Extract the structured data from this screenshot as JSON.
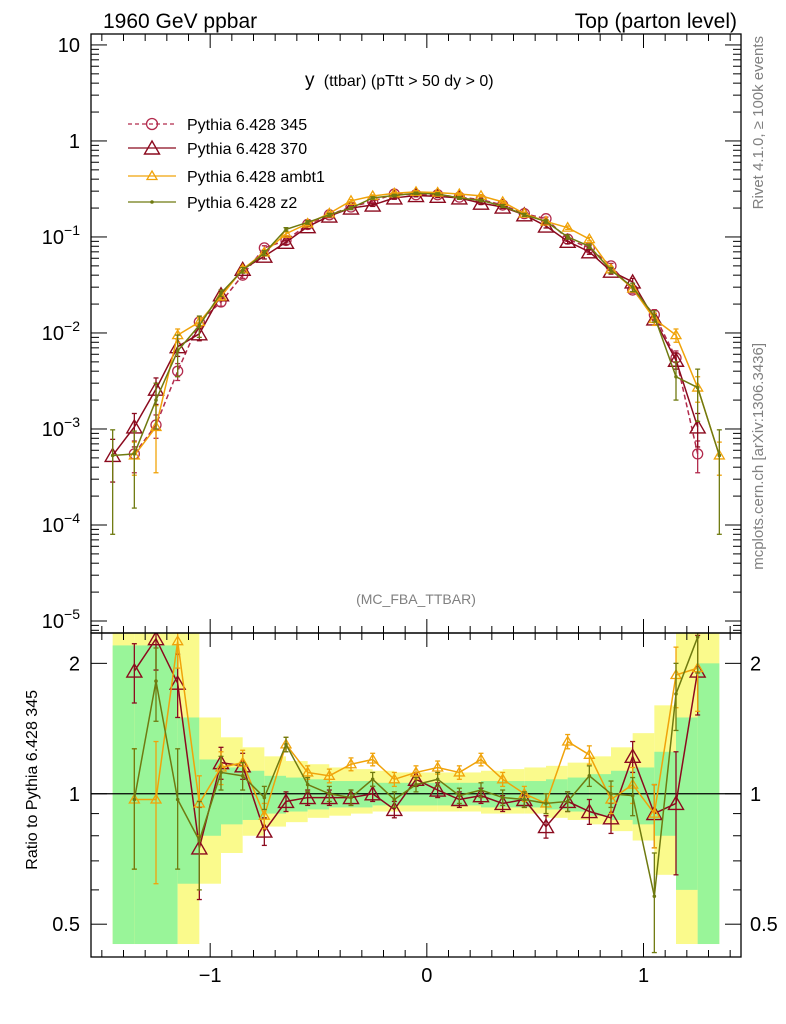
{
  "header": {
    "left_label": "1960 GeV ppbar",
    "right_label": "Top (parton level)"
  },
  "side_labels": {
    "rivet": "Rivet 4.1.0, ≥ 100k events",
    "mcplots": "mcplots.cern.ch [arXiv:1306.3436]"
  },
  "colors": {
    "p345": "#b22a4c",
    "p370": "#8b0a1e",
    "ambt1": "#f0a30a",
    "z2": "#6f7a10",
    "band_inner": "#99f599",
    "band_outer": "#fafa8c"
  },
  "chart_data": [
    {
      "type": "line",
      "panel": "main",
      "title_main": "y",
      "title_rest": "(ttbar) (pTtt > 50 dy > 0)",
      "analysis_label": "(MC_FBA_TTBAR)",
      "xlabel": "",
      "ylabel": "",
      "yscale": "log",
      "xlim": [
        -1.55,
        1.45
      ],
      "ylim": [
        7.5e-06,
        13
      ],
      "y_ticks": [
        {
          "v": 10,
          "label": "10",
          "exp": ""
        },
        {
          "v": 1,
          "label": "1",
          "exp": ""
        },
        {
          "v": 0.1,
          "label": "10",
          "exp": "−1"
        },
        {
          "v": 0.01,
          "label": "10",
          "exp": "−2"
        },
        {
          "v": 0.001,
          "label": "10",
          "exp": "−3"
        },
        {
          "v": 0.0001,
          "label": "10",
          "exp": "−4"
        },
        {
          "v": 1e-05,
          "label": "10",
          "exp": "−5"
        }
      ],
      "x_ticks": [
        {
          "v": -1,
          "label": "−1"
        },
        {
          "v": 0,
          "label": "0"
        },
        {
          "v": 1,
          "label": "1"
        }
      ],
      "legend_position": "top-left",
      "series": [
        {
          "name": "Pythia 6.428 345",
          "key": "p345",
          "marker": "circle",
          "dashed": true,
          "x": [
            -1.35,
            -1.25,
            -1.15,
            -1.05,
            -0.95,
            -0.85,
            -0.75,
            -0.65,
            -0.55,
            -0.45,
            -0.35,
            -0.25,
            -0.15,
            -0.05,
            0.05,
            0.15,
            0.25,
            0.35,
            0.45,
            0.55,
            0.65,
            0.75,
            0.85,
            0.95,
            1.05,
            1.15,
            1.25
          ],
          "y": [
            0.00055,
            0.0011,
            0.004,
            0.013,
            0.021,
            0.04,
            0.077,
            0.092,
            0.135,
            0.17,
            0.205,
            0.235,
            0.28,
            0.275,
            0.275,
            0.26,
            0.245,
            0.215,
            0.175,
            0.155,
            0.095,
            0.077,
            0.05,
            0.028,
            0.0155,
            0.0055,
            0.00055
          ],
          "err": [
            0.0002,
            0.0003,
            0.0008,
            0.0015,
            0.002,
            0.003,
            0.004,
            0.005,
            0.006,
            0.006,
            0.007,
            0.007,
            0.008,
            0.008,
            0.008,
            0.008,
            0.007,
            0.007,
            0.006,
            0.006,
            0.005,
            0.004,
            0.003,
            0.002,
            0.002,
            0.001,
            0.0002
          ]
        },
        {
          "name": "Pythia 6.428 370",
          "key": "p370",
          "marker": "triangle-open",
          "dashed": false,
          "x": [
            -1.45,
            -1.35,
            -1.25,
            -1.15,
            -1.05,
            -0.95,
            -0.85,
            -0.75,
            -0.65,
            -0.55,
            -0.45,
            -0.35,
            -0.25,
            -0.15,
            -0.05,
            0.05,
            0.15,
            0.25,
            0.35,
            0.45,
            0.55,
            0.65,
            0.75,
            0.85,
            0.95,
            1.05,
            1.15,
            1.25
          ],
          "y": [
            0.00053,
            0.00105,
            0.0026,
            0.0072,
            0.0098,
            0.025,
            0.046,
            0.063,
            0.088,
            0.128,
            0.165,
            0.2,
            0.215,
            0.255,
            0.27,
            0.265,
            0.255,
            0.225,
            0.205,
            0.17,
            0.13,
            0.09,
            0.07,
            0.044,
            0.034,
            0.014,
            0.0052,
            0.00105
          ],
          "err": [
            0.00025,
            0.0004,
            0.0008,
            0.0015,
            0.0015,
            0.002,
            0.003,
            0.004,
            0.005,
            0.006,
            0.006,
            0.007,
            0.007,
            0.008,
            0.008,
            0.008,
            0.008,
            0.007,
            0.007,
            0.006,
            0.006,
            0.005,
            0.004,
            0.003,
            0.003,
            0.002,
            0.001,
            0.0004
          ]
        },
        {
          "name": "Pythia 6.428 ambt1",
          "key": "ambt1",
          "marker": "triangle-small",
          "dashed": false,
          "x": [
            -1.35,
            -1.25,
            -1.15,
            -1.05,
            -0.95,
            -0.85,
            -0.75,
            -0.65,
            -0.55,
            -0.45,
            -0.35,
            -0.25,
            -0.15,
            -0.05,
            0.05,
            0.15,
            0.25,
            0.35,
            0.45,
            0.55,
            0.65,
            0.75,
            0.85,
            0.95,
            1.05,
            1.15,
            1.25,
            1.35
          ],
          "y": [
            0.00053,
            0.00105,
            0.0095,
            0.013,
            0.024,
            0.046,
            0.069,
            0.108,
            0.138,
            0.176,
            0.238,
            0.267,
            0.285,
            0.295,
            0.29,
            0.28,
            0.268,
            0.232,
            0.175,
            0.145,
            0.125,
            0.095,
            0.046,
            0.029,
            0.014,
            0.0095,
            0.0027,
            0.00053
          ],
          "err": [
            0.0002,
            0.0007,
            0.0015,
            0.0015,
            0.002,
            0.003,
            0.004,
            0.005,
            0.006,
            0.006,
            0.007,
            0.007,
            0.008,
            0.008,
            0.008,
            0.008,
            0.007,
            0.007,
            0.006,
            0.006,
            0.005,
            0.004,
            0.003,
            0.002,
            0.002,
            0.0015,
            0.0008,
            0.0002
          ]
        },
        {
          "name": "Pythia 6.428 z2",
          "key": "z2",
          "marker": "dot",
          "dashed": false,
          "x": [
            -1.45,
            -1.35,
            -1.25,
            -1.15,
            -1.05,
            -0.95,
            -0.85,
            -0.75,
            -0.65,
            -0.55,
            -0.45,
            -0.35,
            -0.25,
            -0.15,
            -0.05,
            0.05,
            0.15,
            0.25,
            0.35,
            0.45,
            0.55,
            0.65,
            0.75,
            0.85,
            0.95,
            1.05,
            1.15,
            1.25,
            1.35
          ],
          "y": [
            0.00053,
            0.00055,
            0.002,
            0.0065,
            0.012,
            0.026,
            0.045,
            0.068,
            0.12,
            0.142,
            0.17,
            0.2,
            0.255,
            0.27,
            0.285,
            0.28,
            0.255,
            0.24,
            0.21,
            0.17,
            0.145,
            0.1,
            0.08,
            0.045,
            0.03,
            0.015,
            0.0035,
            0.0027,
            0.00053
          ],
          "err": [
            0.00045,
            0.0004,
            0.001,
            0.003,
            0.003,
            0.002,
            0.003,
            0.004,
            0.005,
            0.006,
            0.006,
            0.007,
            0.007,
            0.008,
            0.008,
            0.008,
            0.008,
            0.007,
            0.007,
            0.006,
            0.006,
            0.005,
            0.004,
            0.003,
            0.003,
            0.002,
            0.0015,
            0.0015,
            0.00045
          ]
        }
      ]
    },
    {
      "type": "line",
      "panel": "ratio",
      "xlabel": "",
      "ylabel": "Ratio to Pythia 6.428 345",
      "yscale": "log",
      "xlim": [
        -1.55,
        1.45
      ],
      "ylim": [
        0.42,
        2.35
      ],
      "y_ticks": [
        {
          "v": 0.5,
          "label": "0.5"
        },
        {
          "v": 1,
          "label": "1"
        },
        {
          "v": 2,
          "label": "2"
        }
      ],
      "x_ticks": [
        {
          "v": -1,
          "label": "−1"
        },
        {
          "v": 0,
          "label": "0"
        },
        {
          "v": 1,
          "label": "1"
        }
      ],
      "band": {
        "x": [
          -1.4,
          -1.3,
          -1.2,
          -1.1,
          -1.0,
          -0.9,
          -0.8,
          -0.7,
          -0.6,
          -0.5,
          -0.4,
          -0.3,
          -0.2,
          -0.1,
          0.0,
          0.1,
          0.2,
          0.3,
          0.4,
          0.5,
          0.6,
          0.7,
          0.8,
          0.9,
          1.0,
          1.1,
          1.2,
          1.3
        ],
        "inner": [
          0.45,
          0.45,
          0.45,
          0.62,
          0.8,
          0.85,
          0.87,
          0.9,
          0.91,
          0.92,
          0.93,
          0.93,
          0.94,
          0.94,
          0.94,
          0.94,
          0.94,
          0.93,
          0.93,
          0.93,
          0.92,
          0.91,
          0.89,
          0.87,
          0.85,
          0.8,
          0.6,
          0.45
        ],
        "inner_hi": [
          2.2,
          2.2,
          2.2,
          1.5,
          1.2,
          1.15,
          1.13,
          1.1,
          1.09,
          1.08,
          1.07,
          1.07,
          1.06,
          1.06,
          1.06,
          1.06,
          1.06,
          1.07,
          1.07,
          1.07,
          1.08,
          1.09,
          1.11,
          1.13,
          1.15,
          1.25,
          1.5,
          2.0
        ],
        "outer_lo": [
          0.45,
          0.45,
          0.45,
          0.45,
          0.62,
          0.73,
          0.8,
          0.84,
          0.86,
          0.88,
          0.89,
          0.9,
          0.91,
          0.91,
          0.91,
          0.91,
          0.91,
          0.9,
          0.9,
          0.9,
          0.88,
          0.87,
          0.85,
          0.82,
          0.78,
          0.65,
          0.45,
          0.45
        ],
        "outer_hi": [
          2.35,
          2.35,
          2.35,
          2.35,
          1.5,
          1.35,
          1.28,
          1.22,
          1.19,
          1.17,
          1.15,
          1.14,
          1.13,
          1.12,
          1.12,
          1.12,
          1.12,
          1.13,
          1.14,
          1.15,
          1.16,
          1.18,
          1.22,
          1.28,
          1.38,
          1.6,
          2.35,
          2.35
        ]
      },
      "series": [
        {
          "name": "Pythia 6.428 370",
          "key": "p370",
          "marker": "triangle-open",
          "x": [
            -1.35,
            -1.25,
            -1.15,
            -1.05,
            -0.95,
            -0.85,
            -0.75,
            -0.65,
            -0.55,
            -0.45,
            -0.35,
            -0.25,
            -0.15,
            -0.05,
            0.05,
            0.15,
            0.25,
            0.35,
            0.45,
            0.55,
            0.65,
            0.75,
            0.85,
            0.95,
            1.05,
            1.15,
            1.25
          ],
          "y": [
            1.92,
            2.28,
            1.8,
            0.75,
            1.18,
            1.16,
            0.82,
            0.96,
            0.98,
            0.98,
            0.98,
            1.0,
            0.92,
            1.08,
            1.02,
            0.97,
            0.99,
            0.95,
            0.97,
            0.84,
            0.96,
            0.91,
            0.88,
            1.22,
            0.9,
            0.95,
            1.92
          ],
          "err": [
            0.3,
            0.35,
            0.3,
            0.18,
            0.1,
            0.08,
            0.06,
            0.05,
            0.04,
            0.04,
            0.04,
            0.04,
            0.04,
            0.04,
            0.04,
            0.04,
            0.04,
            0.04,
            0.04,
            0.05,
            0.05,
            0.06,
            0.07,
            0.1,
            0.15,
            0.3,
            0.4
          ]
        },
        {
          "name": "Pythia 6.428 ambt1",
          "key": "ambt1",
          "marker": "triangle-small",
          "x": [
            -1.35,
            -1.25,
            -1.15,
            -1.05,
            -0.95,
            -0.85,
            -0.75,
            -0.65,
            -0.55,
            -0.45,
            -0.35,
            -0.25,
            -0.15,
            -0.05,
            0.05,
            0.15,
            0.25,
            0.35,
            0.45,
            0.55,
            0.65,
            0.75,
            0.85,
            0.95,
            1.05,
            1.15,
            1.25
          ],
          "y": [
            0.97,
            0.97,
            2.25,
            0.95,
            1.15,
            1.18,
            0.89,
            1.3,
            1.12,
            1.1,
            1.17,
            1.2,
            1.08,
            1.12,
            1.15,
            1.12,
            1.2,
            1.08,
            1.0,
            0.95,
            1.32,
            1.23,
            0.97,
            1.05,
            0.9,
            1.88,
            1.95
          ],
          "err": [
            0.3,
            0.35,
            0.3,
            0.15,
            0.1,
            0.08,
            0.06,
            0.05,
            0.04,
            0.04,
            0.04,
            0.04,
            0.04,
            0.04,
            0.04,
            0.04,
            0.04,
            0.04,
            0.04,
            0.05,
            0.05,
            0.06,
            0.07,
            0.1,
            0.15,
            0.3,
            0.4
          ]
        },
        {
          "name": "Pythia 6.428 z2",
          "key": "z2",
          "marker": "dot",
          "x": [
            -1.35,
            -1.25,
            -1.15,
            -1.05,
            -0.95,
            -0.85,
            -0.75,
            -0.65,
            -0.55,
            -0.45,
            -0.35,
            -0.25,
            -0.15,
            -0.05,
            0.05,
            0.15,
            0.25,
            0.35,
            0.45,
            0.55,
            0.65,
            0.75,
            0.85,
            0.95,
            1.05,
            1.15,
            1.25
          ],
          "y": [
            0.97,
            1.82,
            0.97,
            0.78,
            1.12,
            1.1,
            0.98,
            1.3,
            1.05,
            1.0,
            0.98,
            1.08,
            0.97,
            1.05,
            1.08,
            0.99,
            1.02,
            0.98,
            0.97,
            0.95,
            0.96,
            1.1,
            1.0,
            0.99,
            0.58,
            1.7,
            2.3
          ],
          "err": [
            0.3,
            0.35,
            0.3,
            0.18,
            0.1,
            0.08,
            0.06,
            0.05,
            0.04,
            0.04,
            0.04,
            0.04,
            0.04,
            0.04,
            0.04,
            0.04,
            0.04,
            0.04,
            0.04,
            0.05,
            0.05,
            0.06,
            0.07,
            0.1,
            0.15,
            0.3,
            0.4
          ]
        }
      ]
    }
  ]
}
